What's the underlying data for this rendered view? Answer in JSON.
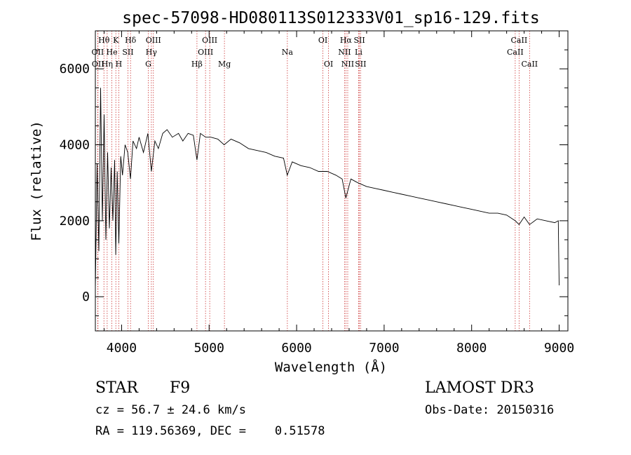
{
  "chart_data": {
    "type": "line",
    "title": "spec-57098-HD080113S012333V01_sp16-129.fits",
    "xlabel": "Wavelength (Å)",
    "ylabel": "Flux (relative)",
    "xlim": [
      3700,
      9100
    ],
    "ylim": [
      -900,
      7000
    ],
    "x_ticks": [
      4000,
      5000,
      6000,
      7000,
      8000,
      9000
    ],
    "y_ticks": [
      0,
      2000,
      4000,
      6000
    ],
    "series": [
      {
        "name": "spectrum",
        "x": [
          3700,
          3720,
          3740,
          3760,
          3780,
          3800,
          3820,
          3840,
          3860,
          3880,
          3900,
          3920,
          3933,
          3950,
          3968,
          3990,
          4010,
          4040,
          4070,
          4101,
          4130,
          4170,
          4200,
          4250,
          4300,
          4340,
          4380,
          4420,
          4470,
          4520,
          4580,
          4650,
          4700,
          4760,
          4820,
          4861,
          4900,
          4960,
          5020,
          5100,
          5172,
          5250,
          5350,
          5450,
          5550,
          5650,
          5750,
          5850,
          5893,
          5950,
          6050,
          6150,
          6250,
          6350,
          6450,
          6520,
          6563,
          6620,
          6700,
          6800,
          6900,
          7000,
          7100,
          7200,
          7300,
          7400,
          7500,
          7600,
          7700,
          7800,
          7900,
          8000,
          8100,
          8200,
          8300,
          8400,
          8498,
          8542,
          8600,
          8662,
          8750,
          8850,
          8950,
          8990,
          9000
        ],
        "values": [
          200,
          3500,
          1200,
          5500,
          2000,
          4800,
          1500,
          3800,
          1800,
          3400,
          2000,
          3600,
          1100,
          3300,
          1400,
          3700,
          3200,
          4000,
          3800,
          3100,
          4100,
          3900,
          4200,
          3800,
          4300,
          3300,
          4100,
          3900,
          4300,
          4400,
          4200,
          4300,
          4100,
          4300,
          4250,
          3600,
          4300,
          4200,
          4200,
          4150,
          4000,
          4150,
          4050,
          3900,
          3850,
          3800,
          3700,
          3650,
          3200,
          3550,
          3450,
          3400,
          3300,
          3300,
          3200,
          3100,
          2600,
          3100,
          3000,
          2900,
          2850,
          2800,
          2750,
          2700,
          2650,
          2600,
          2550,
          2500,
          2450,
          2400,
          2350,
          2300,
          2250,
          2200,
          2200,
          2150,
          2000,
          1900,
          2100,
          1900,
          2050,
          2000,
          1950,
          2000,
          300
        ]
      }
    ],
    "line_markers": [
      {
        "label": "Hθ",
        "x": 3798,
        "row": 1
      },
      {
        "label": "OII",
        "x": 3727,
        "row": 2
      },
      {
        "label": "OII",
        "x": 3730,
        "row": 3
      },
      {
        "label": "Hη",
        "x": 3835,
        "row": 3
      },
      {
        "label": "He",
        "x": 3889,
        "row": 2
      },
      {
        "label": "K",
        "x": 3934,
        "row": 1
      },
      {
        "label": "H",
        "x": 3968,
        "row": 3
      },
      {
        "label": "SII",
        "x": 4072,
        "row": 2
      },
      {
        "label": "Hδ",
        "x": 4102,
        "row": 1
      },
      {
        "label": "OIII",
        "x": 4363,
        "row": 1
      },
      {
        "label": "Hγ",
        "x": 4340,
        "row": 2
      },
      {
        "label": "G",
        "x": 4305,
        "row": 3
      },
      {
        "label": "Hβ",
        "x": 4861,
        "row": 3
      },
      {
        "label": "OIII",
        "x": 5007,
        "row": 1
      },
      {
        "label": "OIII",
        "x": 4959,
        "row": 2
      },
      {
        "label": "Mg",
        "x": 5175,
        "row": 3
      },
      {
        "label": "Na",
        "x": 5894,
        "row": 2
      },
      {
        "label": "OI",
        "x": 6300,
        "row": 1
      },
      {
        "label": "OI",
        "x": 6364,
        "row": 3
      },
      {
        "label": "Hα",
        "x": 6563,
        "row": 1
      },
      {
        "label": "NII",
        "x": 6548,
        "row": 2
      },
      {
        "label": "NII",
        "x": 6584,
        "row": 3
      },
      {
        "label": "SII",
        "x": 6717,
        "row": 1
      },
      {
        "label": "Li",
        "x": 6708,
        "row": 2
      },
      {
        "label": "SII",
        "x": 6731,
        "row": 3
      },
      {
        "label": "CaII",
        "x": 8542,
        "row": 1
      },
      {
        "label": "CaII",
        "x": 8498,
        "row": 2
      },
      {
        "label": "CaII",
        "x": 8662,
        "row": 3
      }
    ]
  },
  "info": {
    "class_label": "STAR",
    "subclass": "F9",
    "survey": "LAMOST DR3",
    "cz": "cz = 56.7 ± 24.6 km/s",
    "obs_date": "Obs-Date: 20150316",
    "coords": "RA = 119.56369, DEC =    0.51578"
  }
}
